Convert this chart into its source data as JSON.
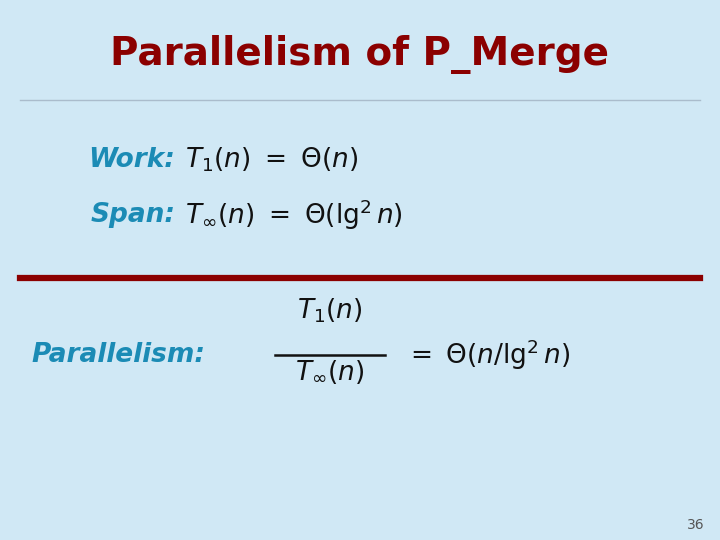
{
  "title": "Parallelism of P_Merge",
  "title_color": "#8B0000",
  "title_fontsize": 28,
  "bg_color": "#D0E8F5",
  "label_color": "#1B8BB5",
  "math_color": "#111111",
  "divider_color_top": "#aabccc",
  "divider_color_mid": "#8B0000",
  "slide_number": "36",
  "work_label": "Work:",
  "span_label": "Span:",
  "parallelism_label": "Parallelism:"
}
